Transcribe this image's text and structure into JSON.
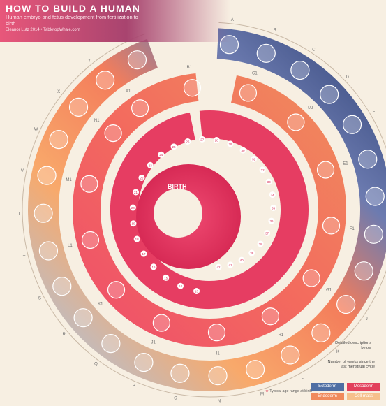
{
  "header": {
    "title": "HOW TO BUILD A HUMAN",
    "subtitle": "Human embryo and fetus development from fertilization to birth",
    "credit": "Eleanor Lutz 2014 • TabletopWhale.com"
  },
  "center_label": "BIRTH",
  "outer_ring_letters": [
    "A",
    "B",
    "C",
    "D",
    "E",
    "F",
    "G",
    "H",
    "I",
    "J",
    "K",
    "L",
    "M",
    "N",
    "O",
    "P",
    "Q",
    "R",
    "S",
    "T",
    "U",
    "V",
    "W",
    "X",
    "Y",
    "Z"
  ],
  "inner_ring_letters": [
    "A1",
    "B1",
    "C1",
    "D1",
    "E1",
    "F1",
    "G1",
    "H1",
    "I1",
    "J1",
    "K1",
    "L1",
    "M1",
    "N1"
  ],
  "week_numbers": [
    "13",
    "14",
    "15",
    "16",
    "17",
    "18",
    "19",
    "20",
    "21",
    "22",
    "23",
    "24",
    "25",
    "26",
    "27",
    "28",
    "29",
    "30",
    "31",
    "32",
    "33",
    "34",
    "35",
    "36",
    "37",
    "38",
    "39",
    "40",
    "41",
    "42"
  ],
  "notes": {
    "detailed": "Detailed descriptions below",
    "weeks": "Number of weeks since the last menstrual cycle"
  },
  "legend": {
    "ectoderm": {
      "label": "Ectoderm",
      "color": "#4f6ea3"
    },
    "mesoderm": {
      "label": "Mesoderm",
      "color": "#e2405c"
    },
    "endoderm": {
      "label": "Endoderm",
      "color": "#f08a5d"
    },
    "cell_mass": {
      "label": "Cell mass",
      "color": "#f6c08c"
    }
  },
  "star_note": "Typical age range at birth",
  "colors": {
    "outer_start": "#3a4d7e",
    "outer_mid": "#f37a5a",
    "outer_end": "#aac6e6",
    "inner": "#e8335b",
    "background": "#f7efe2"
  }
}
